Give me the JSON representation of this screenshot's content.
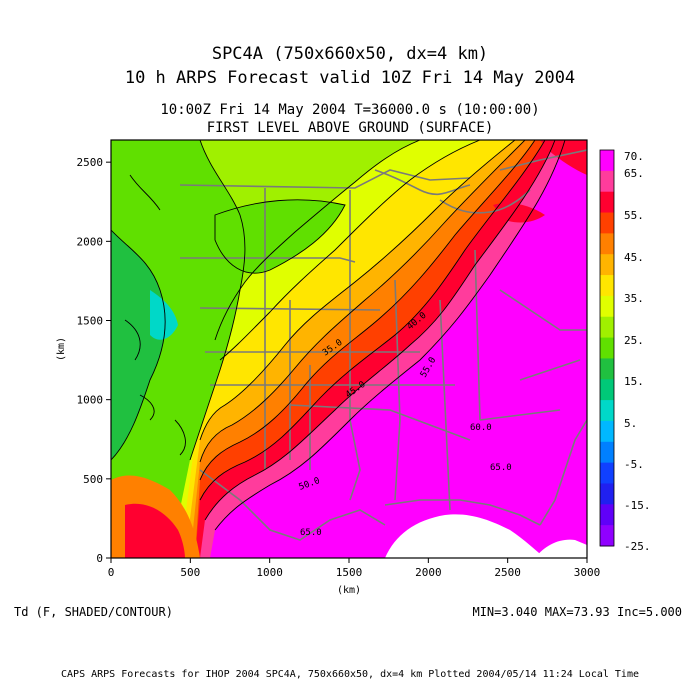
{
  "title": {
    "line1": "SPC4A (750x660x50, dx=4 km)",
    "line2": "10 h ARPS Forecast valid 10Z Fri 14 May 2004",
    "line3": "10:00Z Fri 14 May 2004      T=36000.0 s (10:00:00)",
    "line4": "FIRST LEVEL ABOVE GROUND (SURFACE)"
  },
  "axes": {
    "xlabel": "(km)",
    "ylabel": "(km)",
    "x_range": [
      0,
      3000
    ],
    "y_range": [
      0,
      2640
    ],
    "x_ticks": [
      "0",
      "500",
      "1000",
      "1500",
      "2000",
      "2500",
      "3000"
    ],
    "y_ticks": [
      "0",
      "500",
      "1000",
      "1500",
      "2000",
      "2500"
    ]
  },
  "colorbar": {
    "labels": [
      "70.",
      "65.",
      "55.",
      "45.",
      "35.",
      "25.",
      "15.",
      "5.",
      "-5.",
      "-15.",
      "-25."
    ],
    "colors": [
      "#ff00ff",
      "#ff3c9c",
      "#ff0030",
      "#ff4000",
      "#ff8000",
      "#ffb400",
      "#ffe600",
      "#e0ff00",
      "#a0f000",
      "#60e000",
      "#20c040",
      "#00c878",
      "#00d8c8",
      "#00b8ff",
      "#0080ff",
      "#1040ff",
      "#2020f0",
      "#6000f8",
      "#9000ff"
    ]
  },
  "contour_labels": [
    "35.0",
    "40.0",
    "45.0",
    "50.0",
    "55.0",
    "60.0",
    "65.0"
  ],
  "footer": {
    "variable": "Td (F, SHADED/CONTOUR)",
    "stats": "MIN=3.040  MAX=73.93  Inc=5.000",
    "credits": "CAPS ARPS Forecasts for IHOP 2004   SPC4A, 750x660x50, dx=4 km   Plotted 2004/05/14 11:24 Local Time"
  }
}
